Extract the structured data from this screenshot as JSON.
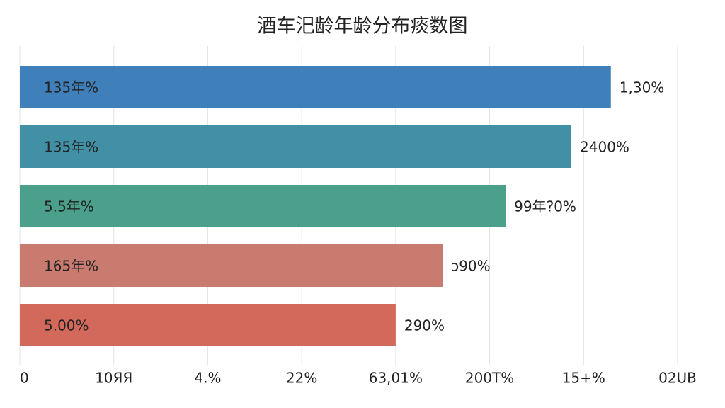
{
  "chart_data": {
    "type": "barh",
    "title": "酒车汜龄年龄分布痰数图",
    "categories": [
      "135年%",
      "135年%",
      "5.5年%",
      "165年%",
      "5.00%"
    ],
    "values": [
      62.9,
      58.7,
      51.7,
      45.0,
      40.0
    ],
    "end_labels": [
      "1,30%",
      "2400%",
      "99年?0%",
      "ɔ90%",
      "290%"
    ],
    "colors": [
      "#3f7fba",
      "#4190a6",
      "#4aa08a",
      "#c97b70",
      "#d2695a"
    ],
    "xlim": [
      0,
      70
    ],
    "xticks": [
      {
        "value": 0,
        "label": "0"
      },
      {
        "value": 10,
        "label": "10ЯЯ"
      },
      {
        "value": 20,
        "label": "4.%"
      },
      {
        "value": 30,
        "label": "22%"
      },
      {
        "value": 40,
        "label": "63,01%"
      },
      {
        "value": 50,
        "label": "200T%"
      },
      {
        "value": 60,
        "label": "15+%"
      },
      {
        "value": 70,
        "label": "02UB"
      }
    ],
    "grid": true
  }
}
